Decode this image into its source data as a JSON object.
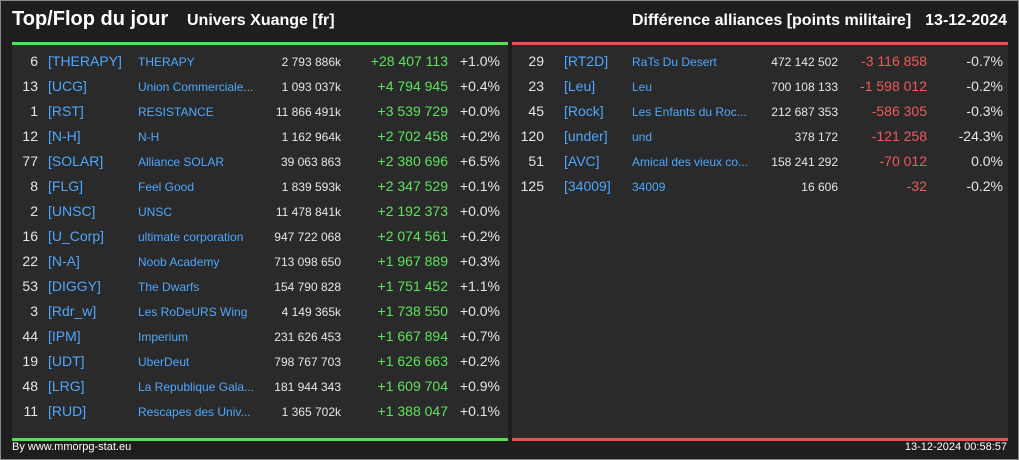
{
  "header": {
    "title": "Top/Flop du jour",
    "universe": "Univers Xuange [fr]",
    "category": "Différence alliances [points militaire]",
    "date": "13-12-2024"
  },
  "top": [
    {
      "rank": "6",
      "tag": "[THERAPY]",
      "name": "THERAPY",
      "points": "2 793 886k",
      "diff": "+28 407 113",
      "pct": "+1.0%"
    },
    {
      "rank": "13",
      "tag": "[UCG]",
      "name": "Union Commerciale...",
      "points": "1 093 037k",
      "diff": "+4 794 945",
      "pct": "+0.4%"
    },
    {
      "rank": "1",
      "tag": "[RST]",
      "name": "RESISTANCE",
      "points": "11 866 491k",
      "diff": "+3 539 729",
      "pct": "+0.0%"
    },
    {
      "rank": "12",
      "tag": "[N-H]",
      "name": "N-H",
      "points": "1 162 964k",
      "diff": "+2 702 458",
      "pct": "+0.2%"
    },
    {
      "rank": "77",
      "tag": "[SOLAR]",
      "name": "Alliance SOLAR",
      "points": "39 063 863",
      "diff": "+2 380 696",
      "pct": "+6.5%"
    },
    {
      "rank": "8",
      "tag": "[FLG]",
      "name": "Feel Good",
      "points": "1 839 593k",
      "diff": "+2 347 529",
      "pct": "+0.1%"
    },
    {
      "rank": "2",
      "tag": "[UNSC]",
      "name": "UNSC",
      "points": "11 478 841k",
      "diff": "+2 192 373",
      "pct": "+0.0%"
    },
    {
      "rank": "16",
      "tag": "[U_Corp]",
      "name": "ultimate corporation",
      "points": "947 722 068",
      "diff": "+2 074 561",
      "pct": "+0.2%"
    },
    {
      "rank": "22",
      "tag": "[N-A]",
      "name": "Noob Academy",
      "points": "713 098 650",
      "diff": "+1 967 889",
      "pct": "+0.3%"
    },
    {
      "rank": "53",
      "tag": "[DIGGY]",
      "name": "The Dwarfs",
      "points": "154 790 828",
      "diff": "+1 751 452",
      "pct": "+1.1%"
    },
    {
      "rank": "3",
      "tag": "[Rdr_w]",
      "name": "Les RoDeURS Wing",
      "points": "4 149 365k",
      "diff": "+1 738 550",
      "pct": "+0.0%"
    },
    {
      "rank": "44",
      "tag": "[IPM]",
      "name": "Imperium",
      "points": "231 626 453",
      "diff": "+1 667 894",
      "pct": "+0.7%"
    },
    {
      "rank": "19",
      "tag": "[UDT]",
      "name": "UberDeut",
      "points": "798 767 703",
      "diff": "+1 626 663",
      "pct": "+0.2%"
    },
    {
      "rank": "48",
      "tag": "[LRG]",
      "name": "La Republique Gala...",
      "points": "181 944 343",
      "diff": "+1 609 704",
      "pct": "+0.9%"
    },
    {
      "rank": "11",
      "tag": "[RUD]",
      "name": "Rescapes des Univ...",
      "points": "1 365 702k",
      "diff": "+1 388 047",
      "pct": "+0.1%"
    }
  ],
  "flop": [
    {
      "rank": "29",
      "tag": "[RT2D]",
      "name": "RaTs Du Desert",
      "points": "472 142 502",
      "diff": "-3 116 858",
      "pct": "-0.7%"
    },
    {
      "rank": "23",
      "tag": "[Leu]",
      "name": "Leu",
      "points": "700 108 133",
      "diff": "-1 598 012",
      "pct": "-0.2%"
    },
    {
      "rank": "45",
      "tag": "[Rock]",
      "name": "Les Enfants du Roc...",
      "points": "212 687 353",
      "diff": "-586 305",
      "pct": "-0.3%"
    },
    {
      "rank": "120",
      "tag": "[under]",
      "name": "und",
      "points": "378 172",
      "diff": "-121 258",
      "pct": "-24.3%"
    },
    {
      "rank": "51",
      "tag": "[AVC]",
      "name": "Amical des vieux co...",
      "points": "158 241 292",
      "diff": "-70 012",
      "pct": "0.0%"
    },
    {
      "rank": "125",
      "tag": "[34009]",
      "name": "34009",
      "points": "16 606",
      "diff": "-32",
      "pct": "-0.2%"
    }
  ],
  "footer": {
    "source": "By www.mmorpg-stat.eu",
    "timestamp": "13-12-2024 00:58:57"
  },
  "colors": {
    "top_accent": "#55e055",
    "flop_accent": "#e05555",
    "link": "#4ea8ff"
  }
}
